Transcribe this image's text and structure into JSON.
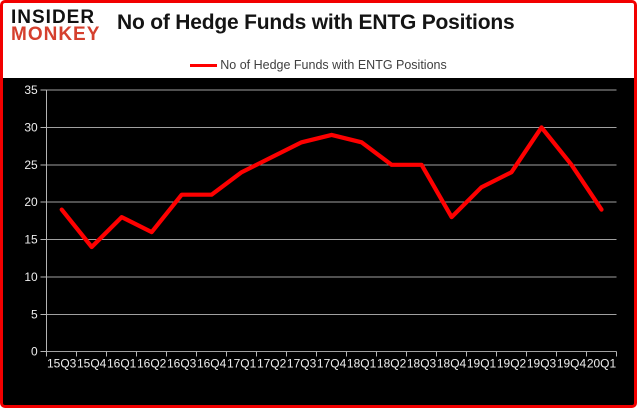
{
  "brand": {
    "line1": "INSIDER",
    "line2": "MONKEY"
  },
  "header": {
    "title": "No of Hedge Funds with ENTG Positions"
  },
  "legend": {
    "label": "No of Hedge Funds with ENTG Positions"
  },
  "colors": {
    "accent_red": "#fe0000",
    "border_red": "#f20000",
    "brand_black": "#111111",
    "brand_red": "#d5402e",
    "plot_background": "#000000",
    "grid": "#a0a0a0",
    "axis_line": "#b4b4b4",
    "axis_text": "#ededed",
    "title_text": "#141414",
    "legend_text": "#3f3f3f",
    "page_background": "#ffffff"
  },
  "chart_data": {
    "type": "line",
    "title": "No of Hedge Funds with ENTG Positions",
    "categories": [
      "15Q3",
      "15Q4",
      "16Q1",
      "16Q2",
      "16Q3",
      "16Q4",
      "17Q1",
      "17Q2",
      "17Q3",
      "17Q4",
      "18Q1",
      "18Q2",
      "18Q3",
      "18Q4",
      "19Q1",
      "19Q2",
      "19Q3",
      "19Q4",
      "20Q1"
    ],
    "series": [
      {
        "name": "No of Hedge Funds with ENTG Positions",
        "values": [
          19,
          14,
          18,
          16,
          21,
          21,
          24,
          26,
          28,
          29,
          28,
          25,
          25,
          18,
          22,
          24,
          30,
          25,
          19
        ]
      }
    ],
    "ylim": [
      0,
      35
    ],
    "ytick_step": 5,
    "grid": true,
    "legend_position": "top"
  }
}
